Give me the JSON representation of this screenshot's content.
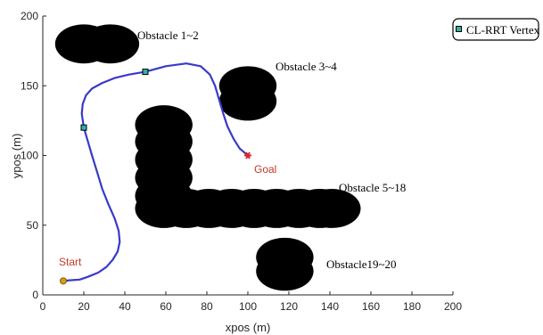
{
  "chart_data": {
    "type": "line",
    "xlabel": "xpos (m)",
    "ylabel": "ypos (m)",
    "xlim": [
      0,
      200
    ],
    "ylim": [
      0,
      200
    ],
    "xticks": [
      0,
      20,
      40,
      60,
      80,
      100,
      120,
      140,
      160,
      180,
      200
    ],
    "yticks": [
      0,
      50,
      100,
      150,
      200
    ],
    "grid": false,
    "legend_position": "outside-right-top",
    "colors": {
      "path": "#3a3ac8",
      "vertex": "#2fb3a8",
      "obstacle": "#000000",
      "start_marker": "#d4a017",
      "goal_marker": "#d62728",
      "point_label": "#c0392b"
    },
    "path": {
      "x": [
        10,
        13,
        18,
        22,
        27,
        31,
        34,
        36.5,
        37.5,
        37,
        35,
        32,
        29,
        26.5,
        24,
        22,
        20,
        19,
        19.5,
        21,
        24,
        29,
        35,
        42,
        50,
        60,
        70,
        77,
        81.5,
        84,
        86,
        88,
        90,
        93,
        96,
        100
      ],
      "y": [
        10,
        10.5,
        11,
        13,
        16,
        20,
        25,
        31,
        38,
        46,
        55,
        65,
        76,
        88,
        100,
        110,
        120,
        130,
        137,
        143,
        148,
        152,
        155.5,
        158,
        160,
        164,
        166,
        164,
        158,
        150,
        140,
        130,
        121,
        112,
        105,
        100
      ]
    },
    "vertices": [
      {
        "x": 20,
        "y": 120
      },
      {
        "x": 50,
        "y": 160
      }
    ],
    "start": {
      "x": 10,
      "y": 10,
      "label": "Start"
    },
    "goal": {
      "x": 100,
      "y": 100,
      "label": "Goal"
    },
    "obstacles": [
      {
        "label": "Obstacle 1~2",
        "circles": [
          {
            "x": 20,
            "y": 180,
            "r": 14
          },
          {
            "x": 33,
            "y": 180,
            "r": 14
          }
        ]
      },
      {
        "label": "Obstacle 3~4",
        "circles": [
          {
            "x": 100,
            "y": 150,
            "r": 14
          },
          {
            "x": 100,
            "y": 139,
            "r": 14
          }
        ]
      },
      {
        "label": "Obstacle 5~18",
        "circles": [
          {
            "x": 59,
            "y": 122,
            "r": 14
          },
          {
            "x": 59,
            "y": 110,
            "r": 14
          },
          {
            "x": 59,
            "y": 97,
            "r": 14
          },
          {
            "x": 59,
            "y": 84,
            "r": 14
          },
          {
            "x": 59,
            "y": 71,
            "r": 14
          },
          {
            "x": 59,
            "y": 62,
            "r": 14
          },
          {
            "x": 70,
            "y": 62,
            "r": 14
          },
          {
            "x": 81,
            "y": 62,
            "r": 14
          },
          {
            "x": 92,
            "y": 62,
            "r": 14
          },
          {
            "x": 103,
            "y": 62,
            "r": 14
          },
          {
            "x": 114,
            "y": 62,
            "r": 14
          },
          {
            "x": 125,
            "y": 62,
            "r": 14
          },
          {
            "x": 135,
            "y": 62,
            "r": 14
          },
          {
            "x": 141,
            "y": 62,
            "r": 14
          }
        ]
      },
      {
        "label": "Obstacle19~20",
        "circles": [
          {
            "x": 118,
            "y": 27,
            "r": 14
          },
          {
            "x": 118,
            "y": 17,
            "r": 14
          }
        ]
      }
    ],
    "legend": [
      {
        "label": "CL-RRT Vertex",
        "marker": "square"
      }
    ]
  }
}
